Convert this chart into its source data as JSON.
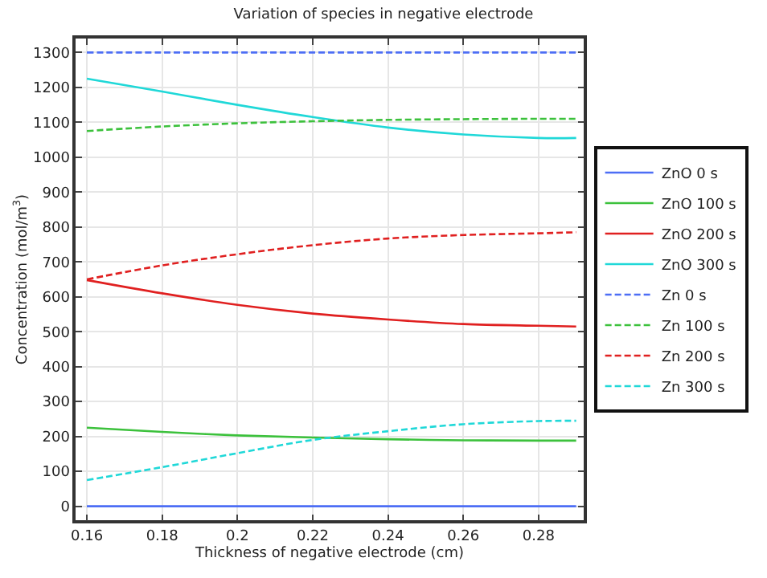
{
  "chart_data": {
    "type": "line",
    "title": "Variation of species in negative electrode",
    "xlabel": "Thickness of negative electrode (cm)",
    "ylabel": "Concentration (mol/m$^{3}$)",
    "x": [
      0.16,
      0.18,
      0.2,
      0.22,
      0.24,
      0.26,
      0.28,
      0.29
    ],
    "series": [
      {
        "name": "ZnO 0 s",
        "color": "#4d6ef5",
        "line_style": "solid",
        "values": [
          0,
          0,
          0,
          0,
          0,
          0,
          0,
          0
        ]
      },
      {
        "name": "ZnO 100 s",
        "color": "#3cc13c",
        "line_style": "solid",
        "values": [
          225,
          213,
          203,
          197,
          192,
          189,
          188,
          188
        ]
      },
      {
        "name": "ZnO 200 s",
        "color": "#e02020",
        "line_style": "solid",
        "values": [
          648,
          610,
          577,
          552,
          535,
          522,
          517,
          515
        ]
      },
      {
        "name": "ZnO 300 s",
        "color": "#20d8d8",
        "line_style": "solid",
        "values": [
          1225,
          1188,
          1150,
          1115,
          1085,
          1065,
          1055,
          1055
        ]
      },
      {
        "name": "Zn 0 s",
        "color": "#4d6ef5",
        "line_style": "dashed",
        "values": [
          1300,
          1300,
          1300,
          1300,
          1300,
          1300,
          1300,
          1300
        ]
      },
      {
        "name": "Zn 100 s",
        "color": "#3cc13c",
        "line_style": "dashed",
        "values": [
          1075,
          1088,
          1097,
          1103,
          1107,
          1109,
          1110,
          1110
        ]
      },
      {
        "name": "Zn 200 s",
        "color": "#e02020",
        "line_style": "dashed",
        "values": [
          650,
          690,
          722,
          748,
          767,
          777,
          782,
          785
        ]
      },
      {
        "name": "Zn 300 s",
        "color": "#20d8d8",
        "line_style": "dashed",
        "values": [
          75,
          112,
          152,
          190,
          215,
          235,
          244,
          245
        ]
      }
    ],
    "xlim": [
      0.157,
      0.292
    ],
    "ylim": [
      -40,
      1340
    ],
    "xticks": [
      0.16,
      0.18,
      0.2,
      0.22,
      0.24,
      0.26,
      0.28
    ],
    "yticks": [
      0,
      100,
      200,
      300,
      400,
      500,
      600,
      700,
      800,
      900,
      1000,
      1100,
      1200,
      1300
    ],
    "grid": true,
    "legend": "right",
    "marker": "none"
  }
}
